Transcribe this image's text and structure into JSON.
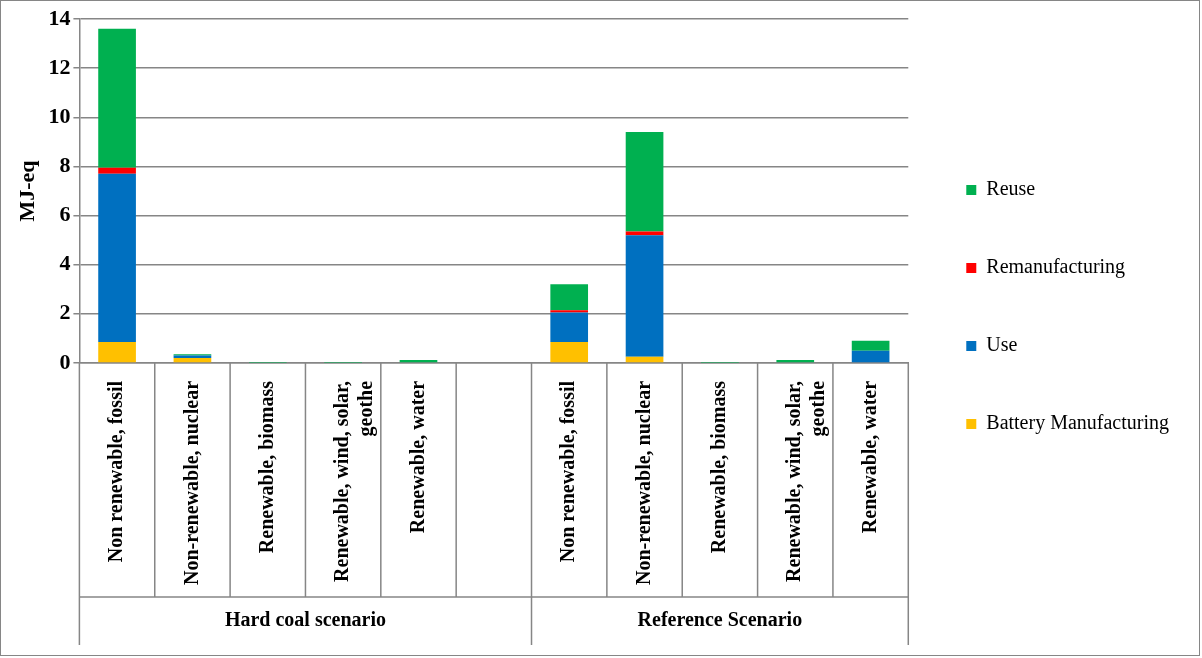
{
  "chart_data": {
    "type": "bar",
    "stacked": true,
    "ylabel": "MJ-eq",
    "categories": [
      "Non renewable, fossil",
      "Non-renewable, nuclear",
      "Renewable, biomass",
      "Renewable, wind, solar, geothe",
      "Renewable, water",
      null,
      "Non renewable, fossil",
      "Non-renewable, nuclear",
      "Renewable, biomass",
      "Renewable, wind, solar, geothe",
      "Renewable, water"
    ],
    "series": [
      {
        "name": "Battery Manufacturing",
        "color": "#ffc000",
        "values": [
          0.85,
          0.2,
          0,
          0,
          0,
          null,
          0.85,
          0.25,
          0,
          0,
          0
        ]
      },
      {
        "name": "Use",
        "color": "#0070c0",
        "values": [
          6.85,
          0.1,
          0,
          0,
          0,
          null,
          1.2,
          4.95,
          0,
          0,
          0.5
        ]
      },
      {
        "name": "Remanufacturing",
        "color": "#ff0000",
        "values": [
          0.25,
          0,
          0,
          0,
          0,
          null,
          0.1,
          0.15,
          0,
          0,
          0
        ]
      },
      {
        "name": "Reuse",
        "color": "#00b050",
        "values": [
          5.65,
          0.05,
          0.01,
          0.01,
          0.12,
          null,
          1.05,
          4.05,
          0.01,
          0.12,
          0.4
        ]
      }
    ],
    "ylim": [
      0,
      14
    ],
    "yticks": [
      0,
      2,
      4,
      6,
      8,
      10,
      12,
      14
    ],
    "grid": "y",
    "legend": "right",
    "annotations": [
      "Hard coal scenario",
      "Reference Scenario"
    ]
  }
}
